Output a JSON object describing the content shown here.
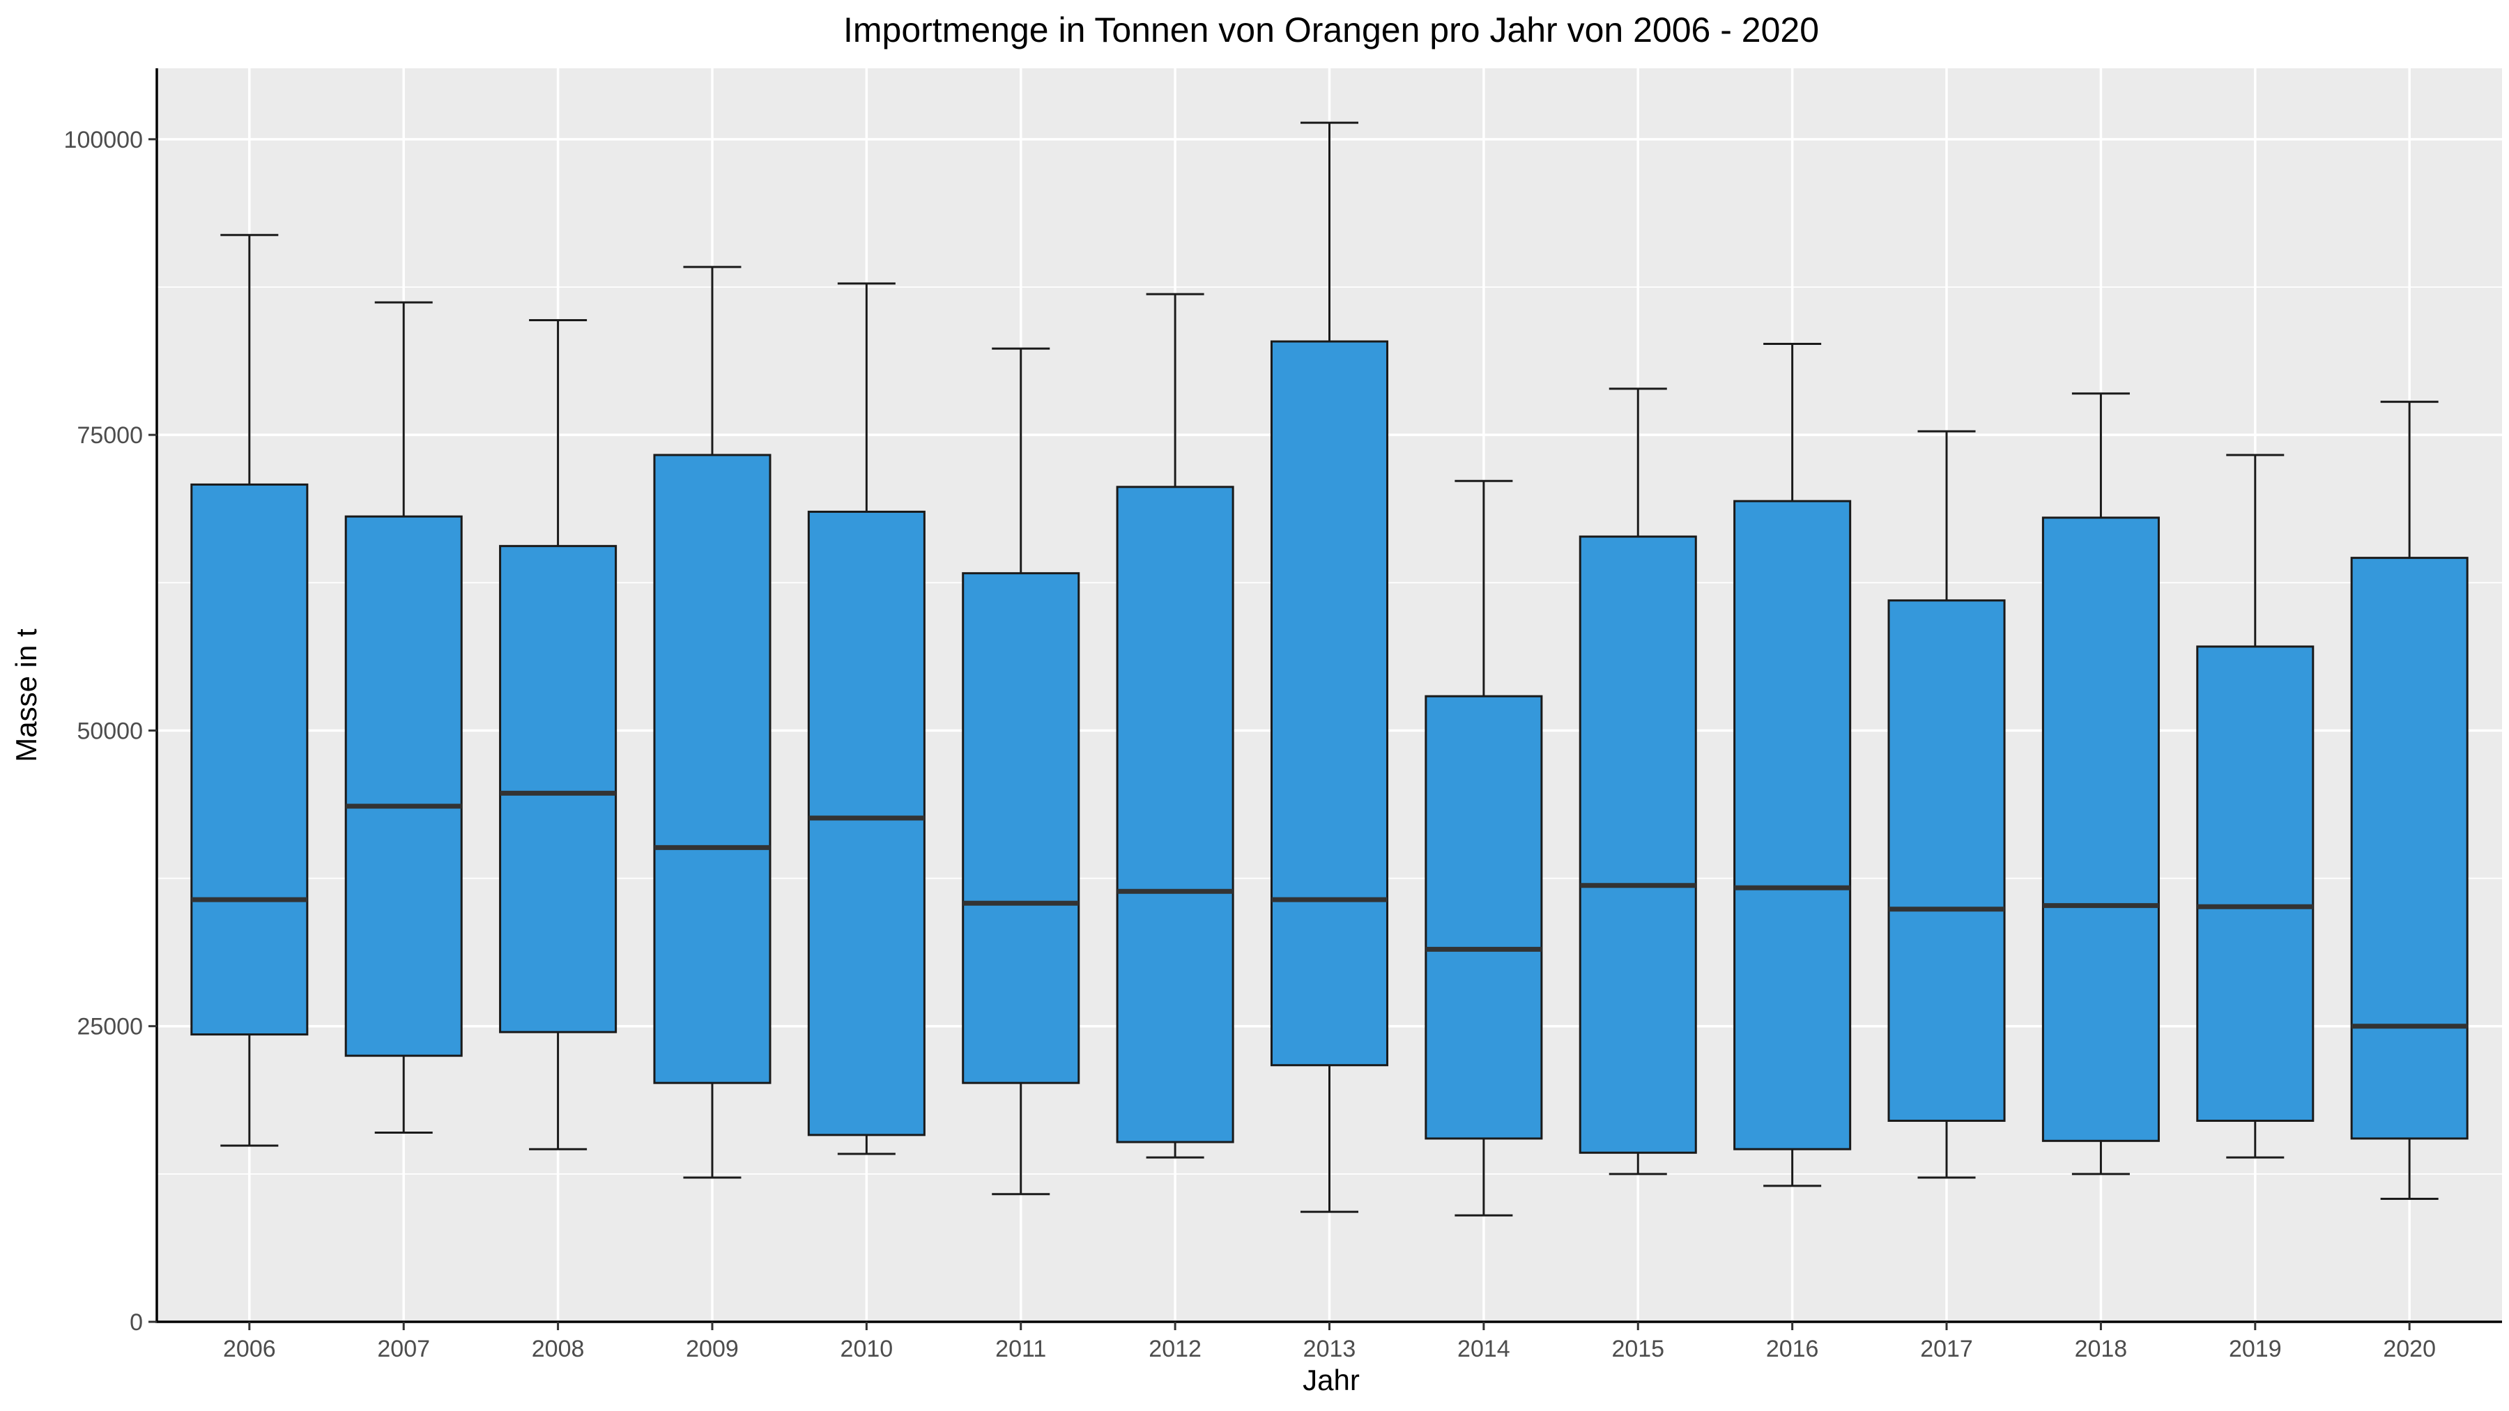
{
  "chart_data": {
    "type": "boxplot",
    "title": "Importmenge in Tonnen von Orangen pro Jahr von 2006 - 2020",
    "xlabel": "Jahr",
    "ylabel": "Masse in t",
    "ylim": [
      0,
      106000
    ],
    "y_ticks": [
      0,
      25000,
      50000,
      75000,
      100000
    ],
    "y_tick_labels": [
      "0",
      "25000",
      "50000",
      "75000",
      "100000"
    ],
    "grid": true,
    "legend": "none",
    "box_color": "#3598DB",
    "panel_background": "#EBEBEB",
    "categories": [
      "2006",
      "2007",
      "2008",
      "2009",
      "2010",
      "2011",
      "2012",
      "2013",
      "2014",
      "2015",
      "2016",
      "2017",
      "2018",
      "2019",
      "2020"
    ],
    "boxes": [
      {
        "min": 14900,
        "q1": 24300,
        "median": 35700,
        "q3": 70800,
        "max": 91900
      },
      {
        "min": 16000,
        "q1": 22500,
        "median": 43600,
        "q3": 68100,
        "max": 86200
      },
      {
        "min": 14600,
        "q1": 24500,
        "median": 44700,
        "q3": 65600,
        "max": 84700
      },
      {
        "min": 12200,
        "q1": 20200,
        "median": 40100,
        "q3": 73300,
        "max": 89200
      },
      {
        "min": 14200,
        "q1": 15800,
        "median": 42600,
        "q3": 68500,
        "max": 87800
      },
      {
        "min": 10800,
        "q1": 20200,
        "median": 35400,
        "q3": 63300,
        "max": 82300
      },
      {
        "min": 13900,
        "q1": 15200,
        "median": 36400,
        "q3": 70600,
        "max": 86900
      },
      {
        "min": 9300,
        "q1": 21700,
        "median": 35700,
        "q3": 82900,
        "max": 101400
      },
      {
        "min": 9000,
        "q1": 15500,
        "median": 31500,
        "q3": 52900,
        "max": 71100
      },
      {
        "min": 12500,
        "q1": 14300,
        "median": 36900,
        "q3": 66400,
        "max": 78900
      },
      {
        "min": 11500,
        "q1": 14600,
        "median": 36700,
        "q3": 69400,
        "max": 82700
      },
      {
        "min": 12200,
        "q1": 17000,
        "median": 34900,
        "q3": 61000,
        "max": 75300
      },
      {
        "min": 12500,
        "q1": 15300,
        "median": 35200,
        "q3": 68000,
        "max": 78500
      },
      {
        "min": 13900,
        "q1": 17000,
        "median": 35100,
        "q3": 57100,
        "max": 73300
      },
      {
        "min": 10400,
        "q1": 15500,
        "median": 25000,
        "q3": 64600,
        "max": 77800
      }
    ]
  }
}
